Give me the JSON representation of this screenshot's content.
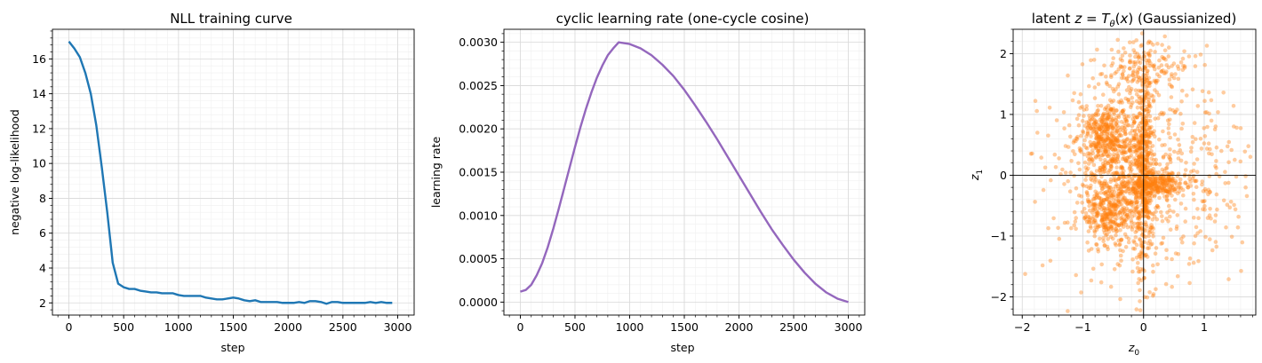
{
  "figure": {
    "panels": [
      "nll",
      "lr",
      "latent"
    ]
  },
  "chart_data": [
    {
      "id": "nll",
      "type": "line",
      "title": "NLL training curve",
      "xlabel": "step",
      "ylabel": "negative log-likelihood",
      "xlim": [
        -150,
        3150
      ],
      "ylim": [
        1.3,
        17.7
      ],
      "xticks": [
        0,
        500,
        1000,
        1500,
        2000,
        2500,
        3000
      ],
      "yticks": [
        2,
        4,
        6,
        8,
        10,
        12,
        14,
        16
      ],
      "grid": true,
      "color": "#1f77b4",
      "series": [
        {
          "x": [
            0,
            50,
            100,
            150,
            200,
            250,
            300,
            350,
            400,
            450,
            500,
            550,
            600,
            650,
            700,
            750,
            800,
            850,
            900,
            950,
            1000,
            1050,
            1100,
            1150,
            1200,
            1250,
            1300,
            1350,
            1400,
            1450,
            1500,
            1550,
            1600,
            1650,
            1700,
            1750,
            1800,
            1850,
            1900,
            1950,
            2000,
            2050,
            2100,
            2150,
            2200,
            2250,
            2300,
            2350,
            2400,
            2450,
            2500,
            2550,
            2600,
            2650,
            2700,
            2750,
            2800,
            2850,
            2900,
            2950
          ],
          "values": [
            17.0,
            16.6,
            16.1,
            15.2,
            14.0,
            12.2,
            9.8,
            7.2,
            4.3,
            3.1,
            2.9,
            2.8,
            2.8,
            2.7,
            2.65,
            2.6,
            2.6,
            2.55,
            2.55,
            2.55,
            2.45,
            2.4,
            2.4,
            2.4,
            2.4,
            2.3,
            2.25,
            2.2,
            2.2,
            2.25,
            2.3,
            2.25,
            2.15,
            2.1,
            2.15,
            2.05,
            2.05,
            2.05,
            2.05,
            2.0,
            2.0,
            2.0,
            2.05,
            2.0,
            2.1,
            2.1,
            2.05,
            1.95,
            2.05,
            2.05,
            2.0,
            2.0,
            2.0,
            2.0,
            2.0,
            2.05,
            2.0,
            2.05,
            2.0,
            2.0
          ]
        }
      ]
    },
    {
      "id": "lr",
      "type": "line",
      "title": "cyclic learning rate (one-cycle cosine)",
      "xlabel": "step",
      "ylabel": "learning rate",
      "xlim": [
        -150,
        3150
      ],
      "ylim": [
        -0.00015,
        0.00315
      ],
      "xticks": [
        0,
        500,
        1000,
        1500,
        2000,
        2500,
        3000
      ],
      "yticks": [
        0.0,
        0.0005,
        0.001,
        0.0015,
        0.002,
        0.0025,
        0.003
      ],
      "ytick_labels": [
        "0.0000",
        "0.0005",
        "0.0010",
        "0.0015",
        "0.0020",
        "0.0025",
        "0.0030"
      ],
      "grid": true,
      "color": "#9467bd",
      "series": [
        {
          "x": [
            0,
            50,
            100,
            150,
            200,
            250,
            300,
            350,
            400,
            450,
            500,
            550,
            600,
            650,
            700,
            750,
            800,
            850,
            900,
            1000,
            1100,
            1200,
            1300,
            1400,
            1500,
            1600,
            1700,
            1800,
            1900,
            2000,
            2100,
            2200,
            2300,
            2400,
            2500,
            2600,
            2700,
            2800,
            2900,
            3000
          ],
          "values": [
            0.00012,
            0.00014,
            0.0002,
            0.00031,
            0.00045,
            0.00063,
            0.00084,
            0.00107,
            0.00131,
            0.00155,
            0.00179,
            0.00202,
            0.00223,
            0.00242,
            0.00259,
            0.00273,
            0.00285,
            0.00293,
            0.003,
            0.00298,
            0.00293,
            0.00285,
            0.00274,
            0.00261,
            0.00245,
            0.00227,
            0.00208,
            0.00188,
            0.00167,
            0.00146,
            0.00125,
            0.00104,
            0.00084,
            0.00066,
            0.00049,
            0.00034,
            0.00021,
            0.00011,
            4e-05,
            0.0
          ]
        }
      ]
    },
    {
      "id": "latent",
      "type": "scatter",
      "title_parts": [
        "latent ",
        "z",
        " = ",
        "T",
        "θ",
        "(",
        "x",
        ") (Gaussianized)"
      ],
      "xlabel_parts": [
        "z",
        "0"
      ],
      "ylabel_parts": [
        "z",
        "1"
      ],
      "xlim": [
        -2.15,
        1.85
      ],
      "ylim": [
        -2.3,
        2.4
      ],
      "xticks": [
        -2,
        -1,
        0,
        1
      ],
      "yticks": [
        -2,
        -1,
        0,
        1,
        2
      ],
      "grid": true,
      "zero_lines": true,
      "color": "#ff7f0e",
      "opacity": 0.4,
      "clusters": [
        {
          "cx": 0.0,
          "cy": 0.15,
          "sx": 0.09,
          "sy": 0.9,
          "n": 560
        },
        {
          "cx": -0.6,
          "cy": 0.65,
          "sx": 0.22,
          "sy": 0.28,
          "n": 420
        },
        {
          "cx": -0.55,
          "cy": -0.5,
          "sx": 0.22,
          "sy": 0.33,
          "n": 420
        },
        {
          "cx": 0.25,
          "cy": -0.15,
          "sx": 0.28,
          "sy": 0.09,
          "n": 260
        },
        {
          "cx": 0.05,
          "cy": 1.75,
          "sx": 0.35,
          "sy": 0.2,
          "n": 140
        },
        {
          "cx": 0.0,
          "cy": 0.0,
          "sx": 0.85,
          "sy": 0.85,
          "n": 600
        }
      ]
    }
  ]
}
